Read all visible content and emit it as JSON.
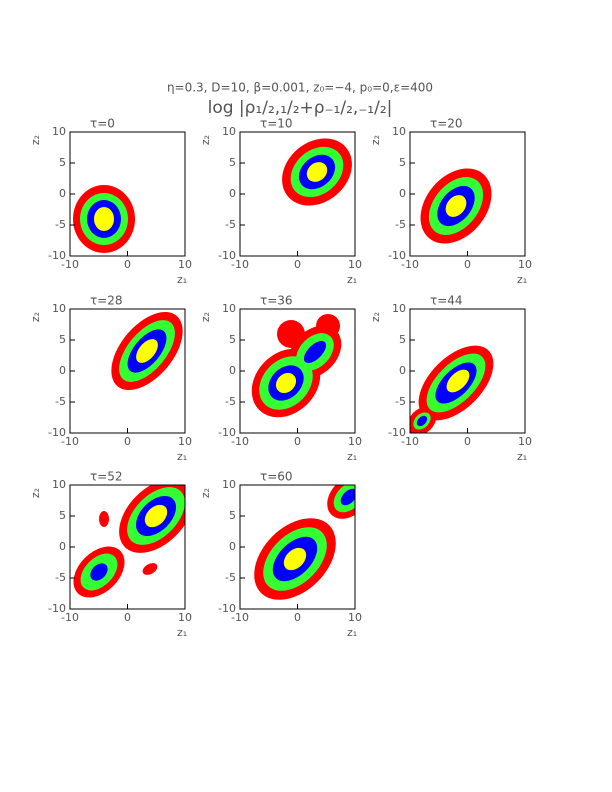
{
  "chart_data": {
    "type": "contour-panels",
    "title": "η=0.3, D=10, β=0.001, z₀=−4, p₀=0,ε=400",
    "subtitle": "log |ρ₁/₂,₁/₂+ρ₋₁/₂,₋₁/₂|",
    "panels": [
      {
        "title": "τ=0",
        "xlabel": "z₁",
        "ylabel": "z₂",
        "xlim": [
          -10,
          10
        ],
        "ylim": [
          -10,
          10
        ],
        "xticks": [
          -10,
          0,
          10
        ],
        "yticks": [
          -10,
          -5,
          0,
          5,
          10
        ]
      },
      {
        "title": "τ=10",
        "xlabel": "z₁",
        "ylabel": "z₂",
        "xlim": [
          -10,
          10
        ],
        "ylim": [
          -10,
          10
        ],
        "xticks": [
          -10,
          0,
          10
        ],
        "yticks": [
          -10,
          -5,
          0,
          5,
          10
        ]
      },
      {
        "title": "τ=20",
        "xlabel": "z₁",
        "ylabel": "z₂",
        "xlim": [
          -10,
          10
        ],
        "ylim": [
          -10,
          10
        ],
        "xticks": [
          -10,
          0,
          10
        ],
        "yticks": [
          -10,
          -5,
          0,
          5,
          10
        ]
      },
      {
        "title": "τ=28",
        "xlabel": "z₁",
        "ylabel": "z₂",
        "xlim": [
          -10,
          10
        ],
        "ylim": [
          -10,
          10
        ],
        "xticks": [
          -10,
          0,
          10
        ],
        "yticks": [
          -10,
          -5,
          0,
          5,
          10
        ]
      },
      {
        "title": "τ=36",
        "xlabel": "z₁",
        "ylabel": "z₂",
        "xlim": [
          -10,
          10
        ],
        "ylim": [
          -10,
          10
        ],
        "xticks": [
          -10,
          0,
          10
        ],
        "yticks": [
          -10,
          -5,
          0,
          5,
          10
        ]
      },
      {
        "title": "τ=44",
        "xlabel": "z₁",
        "ylabel": "z₂",
        "xlim": [
          -10,
          10
        ],
        "ylim": [
          -10,
          10
        ],
        "xticks": [
          -10,
          0,
          10
        ],
        "yticks": [
          -10,
          -5,
          0,
          5,
          10
        ]
      },
      {
        "title": "τ=52",
        "xlabel": "z₁",
        "ylabel": "z₂",
        "xlim": [
          -10,
          10
        ],
        "ylim": [
          -10,
          10
        ],
        "xticks": [
          -10,
          0,
          10
        ],
        "yticks": [
          -10,
          -5,
          0,
          5,
          10
        ]
      },
      {
        "title": "τ=60",
        "xlabel": "z₁",
        "ylabel": "z₂",
        "xlim": [
          -10,
          10
        ],
        "ylim": [
          -10,
          10
        ],
        "xticks": [
          -10,
          0,
          10
        ],
        "yticks": [
          -10,
          -5,
          0,
          5,
          10
        ]
      }
    ]
  }
}
